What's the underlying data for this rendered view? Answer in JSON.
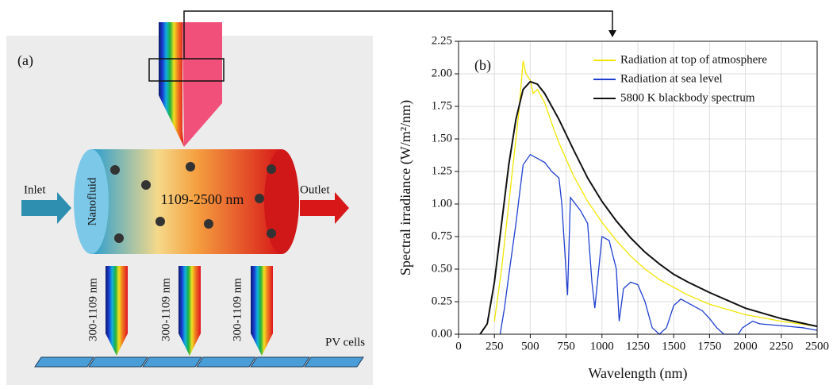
{
  "diagram": {
    "panel_label": "(a)",
    "inlet": "Inlet",
    "outlet": "Outlet",
    "fluid_label": "Nanofluid",
    "band_label": "1109-2500 nm",
    "pv_bands": [
      "300-1109 nm",
      "300-1109 nm",
      "300-1109 nm"
    ],
    "pv_label": "PV cells"
  },
  "chart_data": {
    "type": "line",
    "panel_label": "(b)",
    "x_label": "Wavelength (nm)",
    "y_label": "Spectral irradiance (W/m²/nm)",
    "xlim": [
      0,
      2500
    ],
    "xticks": [
      0,
      250,
      500,
      750,
      1000,
      1250,
      1500,
      1750,
      2000,
      2250,
      2500
    ],
    "ylim": [
      0,
      2.25
    ],
    "yticks": [
      {
        "value": 0,
        "label": "0.00"
      },
      0.25,
      {
        "value": 0.5,
        "label": "0.50"
      },
      0.75,
      {
        "value": 1,
        "label": "1.00"
      },
      1.25,
      {
        "value": 1.5,
        "label": "1.50"
      },
      1.75,
      {
        "value": 2,
        "label": "2.00"
      },
      2.25
    ],
    "grid": true,
    "legend": "upper right",
    "series": [
      {
        "name": "Radiation at top of atmosphere",
        "color": "#f2e600",
        "x": [
          250,
          300,
          350,
          400,
          420,
          450,
          470,
          500,
          520,
          550,
          600,
          650,
          700,
          800,
          900,
          1000,
          1100,
          1200,
          1300,
          1400,
          1500,
          1600,
          1750,
          2000,
          2250,
          2500
        ],
        "values": [
          0.1,
          0.5,
          1.0,
          1.5,
          1.7,
          2.1,
          2.0,
          1.95,
          1.85,
          1.88,
          1.78,
          1.62,
          1.47,
          1.22,
          1.02,
          0.86,
          0.72,
          0.6,
          0.5,
          0.42,
          0.36,
          0.3,
          0.23,
          0.15,
          0.1,
          0.06
        ]
      },
      {
        "name": "Radiation at sea level",
        "color": "#1f3fd0",
        "x": [
          290,
          320,
          350,
          400,
          450,
          500,
          550,
          600,
          650,
          700,
          720,
          760,
          780,
          850,
          900,
          930,
          950,
          1000,
          1050,
          1100,
          1120,
          1150,
          1200,
          1250,
          1300,
          1350,
          1400,
          1450,
          1500,
          1550,
          1600,
          1700,
          1750,
          1800,
          1850,
          1950,
          1980,
          2050,
          2100,
          2200,
          2300,
          2400,
          2500
        ],
        "values": [
          0,
          0.2,
          0.45,
          0.85,
          1.3,
          1.38,
          1.35,
          1.32,
          1.25,
          1.2,
          1.0,
          0.3,
          1.05,
          0.95,
          0.85,
          0.4,
          0.2,
          0.75,
          0.72,
          0.5,
          0.1,
          0.35,
          0.4,
          0.38,
          0.25,
          0.05,
          0,
          0.05,
          0.22,
          0.27,
          0.24,
          0.18,
          0.12,
          0.05,
          0,
          0,
          0.05,
          0.1,
          0.08,
          0.07,
          0.06,
          0.05,
          0.03
        ]
      },
      {
        "name": "5800 K blackbody spectrum",
        "color": "#111111",
        "x": [
          150,
          200,
          250,
          300,
          350,
          400,
          450,
          500,
          550,
          600,
          700,
          800,
          900,
          1000,
          1100,
          1200,
          1300,
          1400,
          1500,
          1600,
          1750,
          2000,
          2250,
          2500
        ],
        "values": [
          0,
          0.08,
          0.4,
          0.85,
          1.3,
          1.65,
          1.88,
          1.94,
          1.92,
          1.85,
          1.65,
          1.42,
          1.2,
          1.02,
          0.87,
          0.74,
          0.63,
          0.54,
          0.46,
          0.4,
          0.32,
          0.2,
          0.12,
          0.06
        ]
      }
    ]
  }
}
